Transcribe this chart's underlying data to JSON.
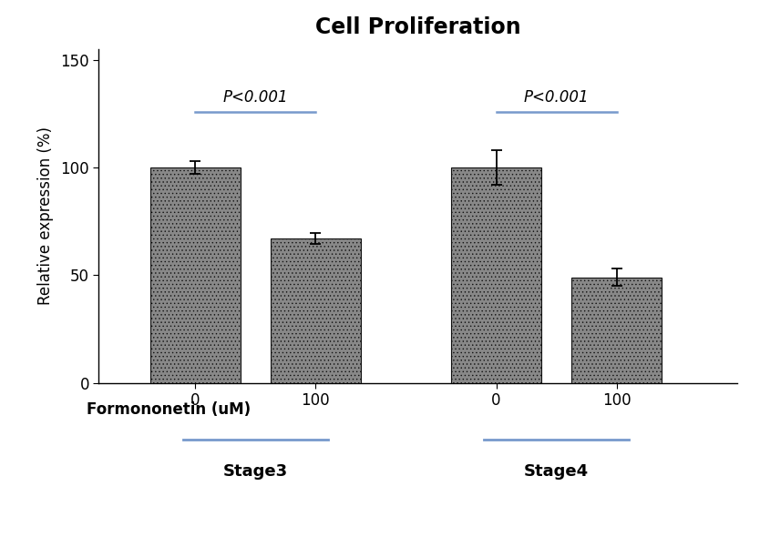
{
  "title": "Cell Proliferation",
  "ylabel": "Relative expression (%)",
  "formononetin_label": "Formononetin (uM)",
  "bar_values": [
    100,
    67,
    100,
    49
  ],
  "bar_errors": [
    3,
    2.5,
    8,
    4
  ],
  "bar_positions": [
    1,
    2,
    3.5,
    4.5
  ],
  "bar_width": 0.75,
  "bar_color": "#888888",
  "bar_edgecolor": "#111111",
  "tick_labels": [
    "0",
    "100",
    "0",
    "100"
  ],
  "ylim": [
    0,
    155
  ],
  "yticks": [
    0,
    50,
    100,
    150
  ],
  "stage_labels": [
    "Stage3",
    "Stage4"
  ],
  "pvalue_text": "P<0.001",
  "bracket_y": 126,
  "bracket_s3": [
    1,
    2
  ],
  "bracket_s4": [
    3.5,
    4.5
  ],
  "blue_color": "#7799cc",
  "title_fontsize": 17,
  "axis_fontsize": 12,
  "tick_fontsize": 12,
  "stage_fontsize": 13,
  "pvalue_fontsize": 12,
  "formononetin_fontsize": 12,
  "xlim": [
    0.2,
    5.5
  ],
  "hatch_pattern": "....",
  "hatch_color": "#333333"
}
